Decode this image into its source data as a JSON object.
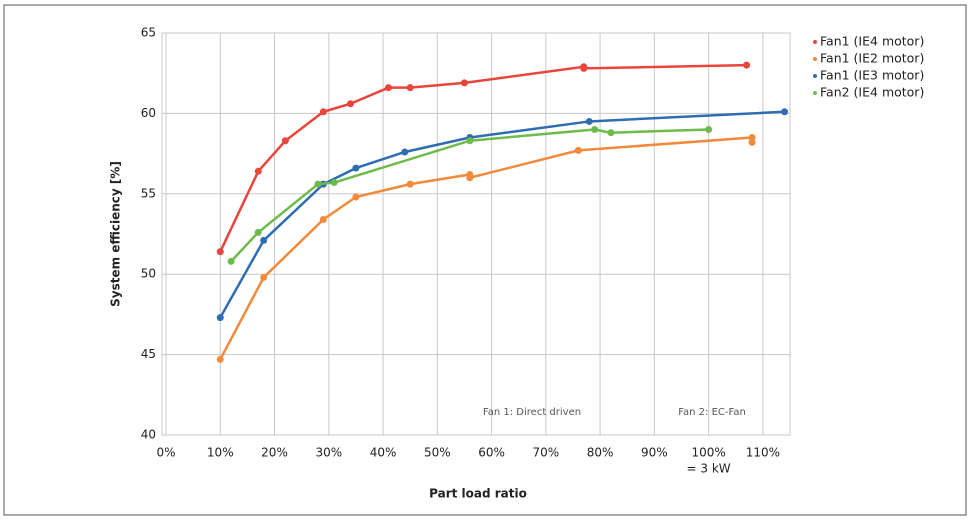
{
  "chart_data": {
    "type": "scatter",
    "y_label": "System efficiency [%]",
    "x_label": "Part load ratio",
    "xlim": [
      0,
      115
    ],
    "ylim": [
      40,
      65
    ],
    "xticks": [
      {
        "value": 0,
        "label": "0%"
      },
      {
        "value": 10,
        "label": "10%"
      },
      {
        "value": 20,
        "label": "20%"
      },
      {
        "value": 30,
        "label": "30%"
      },
      {
        "value": 40,
        "label": "40%"
      },
      {
        "value": 50,
        "label": "50%"
      },
      {
        "value": 60,
        "label": "60%"
      },
      {
        "value": 70,
        "label": "70%"
      },
      {
        "value": 80,
        "label": "80%"
      },
      {
        "value": 90,
        "label": "90%"
      },
      {
        "value": 100,
        "label": "100%"
      },
      {
        "value": 110,
        "label": "110%"
      }
    ],
    "yticks": [
      40,
      45,
      50,
      55,
      60,
      65
    ],
    "grid": true,
    "legend": "top-right",
    "annotations": [
      "= 3 kW",
      "Fan 1: Direct driven",
      "Fan 2: EC-Fan"
    ],
    "series": [
      {
        "name": "Fan1 (IE4 motor)",
        "color": "#e8453c",
        "x": [
          10,
          17,
          22,
          29,
          34,
          41,
          45,
          55,
          77,
          77,
          107
        ],
        "values": [
          51.4,
          56.4,
          58.3,
          60.1,
          60.6,
          61.6,
          61.6,
          61.9,
          62.9,
          62.8,
          63.0
        ]
      },
      {
        "name": "Fan1 (IE2 motor)",
        "color": "#f28a3c",
        "x": [
          10,
          18,
          29,
          35,
          45,
          56,
          56,
          76,
          108,
          108
        ],
        "values": [
          44.7,
          49.8,
          53.4,
          54.8,
          55.6,
          56.2,
          56.0,
          57.7,
          58.5,
          58.2
        ]
      },
      {
        "name": "Fan1 (IE3 motor)",
        "color": "#2f6db3",
        "x": [
          10,
          18,
          29,
          35,
          44,
          56,
          78,
          114
        ],
        "values": [
          47.3,
          52.1,
          55.6,
          56.6,
          57.6,
          58.5,
          59.5,
          60.1
        ]
      },
      {
        "name": "Fan2 (IE4 motor)",
        "color": "#6dbb4a",
        "x": [
          12,
          17,
          28,
          31,
          56,
          79,
          82,
          100
        ],
        "values": [
          50.8,
          52.6,
          55.6,
          55.7,
          58.3,
          59.0,
          58.8,
          59.0
        ]
      }
    ]
  }
}
